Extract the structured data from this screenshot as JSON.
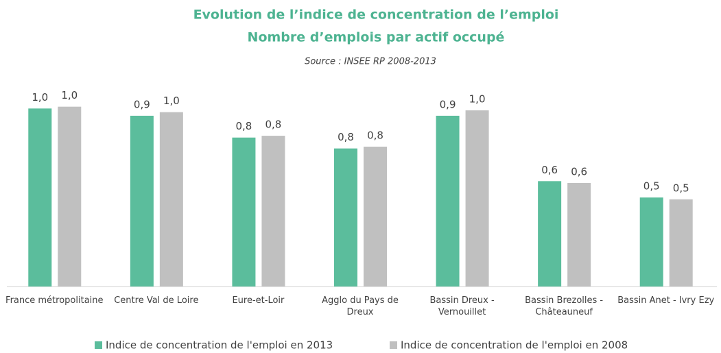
{
  "chart_data": {
    "type": "bar",
    "title": "Evolution de l’indice de concentration de l’emploi",
    "subtitle": "Nombre d’emplois par actif occupé",
    "source": "Source : INSEE RP 2008-2013",
    "categories": [
      "France métropolitaine",
      "Centre Val de Loire",
      "Eure-et-Loir",
      "Agglo du Pays de Dreux",
      "Bassin Dreux - Vernouillet",
      "Bassin Brezolles - Châteauneuf",
      "Bassin Anet - Ivry Ezy"
    ],
    "series": [
      {
        "name": "Indice de concentration de l'emploi en 2013",
        "color": "#5bbd9c",
        "values": [
          0.98,
          0.94,
          0.82,
          0.76,
          0.94,
          0.58,
          0.49
        ],
        "value_labels": [
          "1,0",
          "0,9",
          "0,8",
          "0,8",
          "0,9",
          "0,6",
          "0,5"
        ]
      },
      {
        "name": "Indice de concentration de l'emploi en 2008",
        "color": "#c0c0c0",
        "values": [
          0.99,
          0.96,
          0.83,
          0.77,
          0.97,
          0.57,
          0.48
        ],
        "value_labels": [
          "1,0",
          "1,0",
          "0,8",
          "0,8",
          "1,0",
          "0,6",
          "0,5"
        ]
      }
    ],
    "ylim": [
      0,
      1.2
    ],
    "legend": "bottom"
  }
}
